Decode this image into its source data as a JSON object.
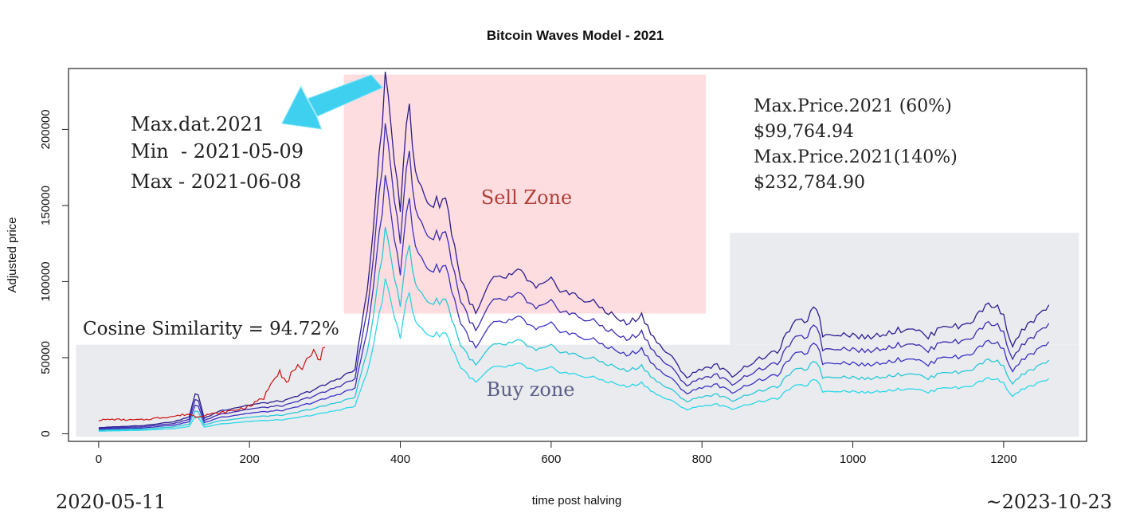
{
  "chart_data": {
    "type": "line",
    "title": "Bitcoin Waves Model - 2021",
    "xlabel": "time post halving",
    "ylabel": "Adjusted price",
    "xlim": [
      -40,
      1310
    ],
    "ylim": [
      -5000,
      240000
    ],
    "x_ticks": [
      0,
      200,
      400,
      600,
      800,
      1000,
      1200
    ],
    "y_ticks": [
      0,
      50000,
      100000,
      150000,
      200000
    ],
    "grid": false,
    "zones": [
      {
        "name": "Sell Zone",
        "x_range": [
          325,
          805
        ],
        "y_range": [
          79000,
          236000
        ],
        "color": "#fddde0",
        "label_color": "#b0403a"
      },
      {
        "name": "Buy zone",
        "x_range": [
          -30,
          1300
        ],
        "y_range": [
          -2000,
          58500
        ],
        "color": "#eaebef",
        "label_color": "#5a5f85"
      },
      {
        "name": "",
        "x_range": [
          837,
          1300
        ],
        "y_range": [
          58500,
          132000
        ],
        "color": "#eaebef",
        "label_color": ""
      }
    ],
    "model_x": [
      0,
      60,
      100,
      120,
      130,
      140,
      160,
      200,
      250,
      300,
      340,
      360,
      380,
      400,
      410,
      420,
      440,
      460,
      480,
      500,
      520,
      560,
      580,
      600,
      620,
      660,
      700,
      720,
      740,
      760,
      780,
      800,
      820,
      840,
      860,
      880,
      900,
      920,
      940,
      950,
      960,
      980,
      1000,
      1020,
      1040,
      1060,
      1080,
      1100,
      1120,
      1140,
      1160,
      1180,
      1200,
      1210,
      1220,
      1240,
      1262
    ],
    "model_base": [
      4000,
      5500,
      8000,
      11000,
      30000,
      10000,
      15000,
      19000,
      22000,
      32000,
      42000,
      110000,
      232000,
      150000,
      222000,
      170000,
      150000,
      155000,
      102000,
      78000,
      100000,
      106000,
      95000,
      100000,
      93000,
      85000,
      72000,
      78000,
      60000,
      50000,
      37000,
      43000,
      45000,
      38000,
      45000,
      50000,
      54000,
      72000,
      75000,
      88000,
      65000,
      66000,
      65000,
      63000,
      66000,
      68000,
      70000,
      63000,
      72000,
      70000,
      75000,
      86000,
      80000,
      56000,
      65000,
      75000,
      84000
    ],
    "series": [
      {
        "name": "",
        "color": "#2b1d8e",
        "multiplier": 1.4
      },
      {
        "name": "",
        "color": "#3a2cb0",
        "multiplier": 1.2
      },
      {
        "name": "",
        "color": "#3b32c4",
        "multiplier": 1.0
      },
      {
        "name": "",
        "color": "#27c8d6",
        "multiplier": 0.8
      },
      {
        "name": "",
        "color": "#2ad8e8",
        "multiplier": 0.6
      }
    ],
    "actual": {
      "name": "",
      "color": "#cc1111",
      "x": [
        0,
        20,
        40,
        60,
        80,
        100,
        120,
        130,
        140,
        160,
        180,
        200,
        220,
        230,
        240,
        250,
        260,
        270,
        280,
        285,
        290,
        300
      ],
      "y": [
        9000,
        9500,
        9000,
        9200,
        10500,
        11500,
        13000,
        11000,
        12500,
        13500,
        15500,
        18000,
        24000,
        36000,
        42000,
        32000,
        45000,
        40000,
        52000,
        58000,
        48000,
        56000
      ]
    }
  },
  "annotations": {
    "max_dat_title": "Max.dat.2021",
    "max_dat_min": "Min  - 2021-05-09",
    "max_dat_max": "Max - 2021-06-08",
    "price_60_label": "Max.Price.2021 (60%)",
    "price_60_value": "$99,764.94",
    "price_140_label": "Max.Price.2021(140%)",
    "price_140_value": "$232,784.90",
    "cosine": "Cosine Similarity = 94.72%",
    "start_date": "2020-05-11",
    "end_date": "~2023-10-23",
    "arrow_color": "#3fd0ef"
  }
}
